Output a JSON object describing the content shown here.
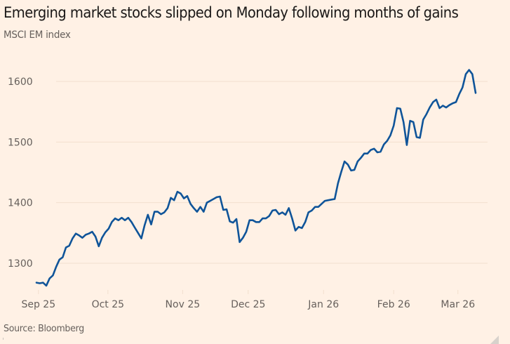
{
  "header": {
    "title": "Emerging market stocks slipped on Monday following months of gains",
    "subtitle": "MSCI EM index"
  },
  "footer": {
    "source": "Source: Bloomberg"
  },
  "colors": {
    "background": "#FFF1E5",
    "line": "#0F5499",
    "gridline": "#F2DFCE",
    "text": "#66605C",
    "title": "#1A1817"
  },
  "chart_data": {
    "type": "line",
    "title": "Emerging market stocks slipped on Monday following months of gains",
    "subtitle": "MSCI EM index",
    "xlabel": "",
    "ylabel": "",
    "ylim": [
      1255,
      1630
    ],
    "yticks": [
      1300,
      1400,
      1500,
      1600
    ],
    "ytick_labels": [
      "1300",
      "1400",
      "1500",
      "1600"
    ],
    "grid": "horizontal",
    "legend": "none",
    "xticks": [
      {
        "label": "Sep 25",
        "index": 0.6
      },
      {
        "label": "Oct 25",
        "index": 21.8
      },
      {
        "label": "Nov 25",
        "index": 44.6
      },
      {
        "label": "Dec 25",
        "index": 64.6
      },
      {
        "label": "Jan 26",
        "index": 87.6
      },
      {
        "label": "Feb 26",
        "index": 109.0
      },
      {
        "label": "Mar 26",
        "index": 128.6
      }
    ],
    "series": [
      {
        "name": "MSCI EM index",
        "values": [
          1268,
          1267,
          1268,
          1263,
          1275,
          1280,
          1294,
          1306,
          1310,
          1326,
          1329,
          1341,
          1349,
          1346,
          1342,
          1347,
          1349,
          1352,
          1344,
          1328,
          1342,
          1351,
          1357,
          1368,
          1374,
          1371,
          1375,
          1371,
          1375,
          1368,
          1359,
          1350,
          1341,
          1363,
          1380,
          1364,
          1385,
          1385,
          1381,
          1384,
          1391,
          1408,
          1404,
          1418,
          1415,
          1407,
          1411,
          1398,
          1391,
          1385,
          1393,
          1385,
          1400,
          1403,
          1406,
          1409,
          1410,
          1388,
          1389,
          1369,
          1367,
          1373,
          1335,
          1342,
          1352,
          1371,
          1371,
          1368,
          1368,
          1374,
          1374,
          1378,
          1387,
          1388,
          1381,
          1384,
          1380,
          1391,
          1374,
          1354,
          1360,
          1358,
          1368,
          1384,
          1387,
          1393,
          1393,
          1398,
          1403,
          1404,
          1405,
          1406,
          1432,
          1451,
          1468,
          1463,
          1453,
          1454,
          1468,
          1474,
          1481,
          1481,
          1487,
          1489,
          1483,
          1484,
          1496,
          1502,
          1511,
          1527,
          1556,
          1555,
          1533,
          1495,
          1535,
          1533,
          1508,
          1507,
          1537,
          1546,
          1557,
          1566,
          1570,
          1556,
          1560,
          1557,
          1561,
          1564,
          1566,
          1579,
          1590,
          1612,
          1619,
          1612,
          1581
        ]
      }
    ]
  }
}
